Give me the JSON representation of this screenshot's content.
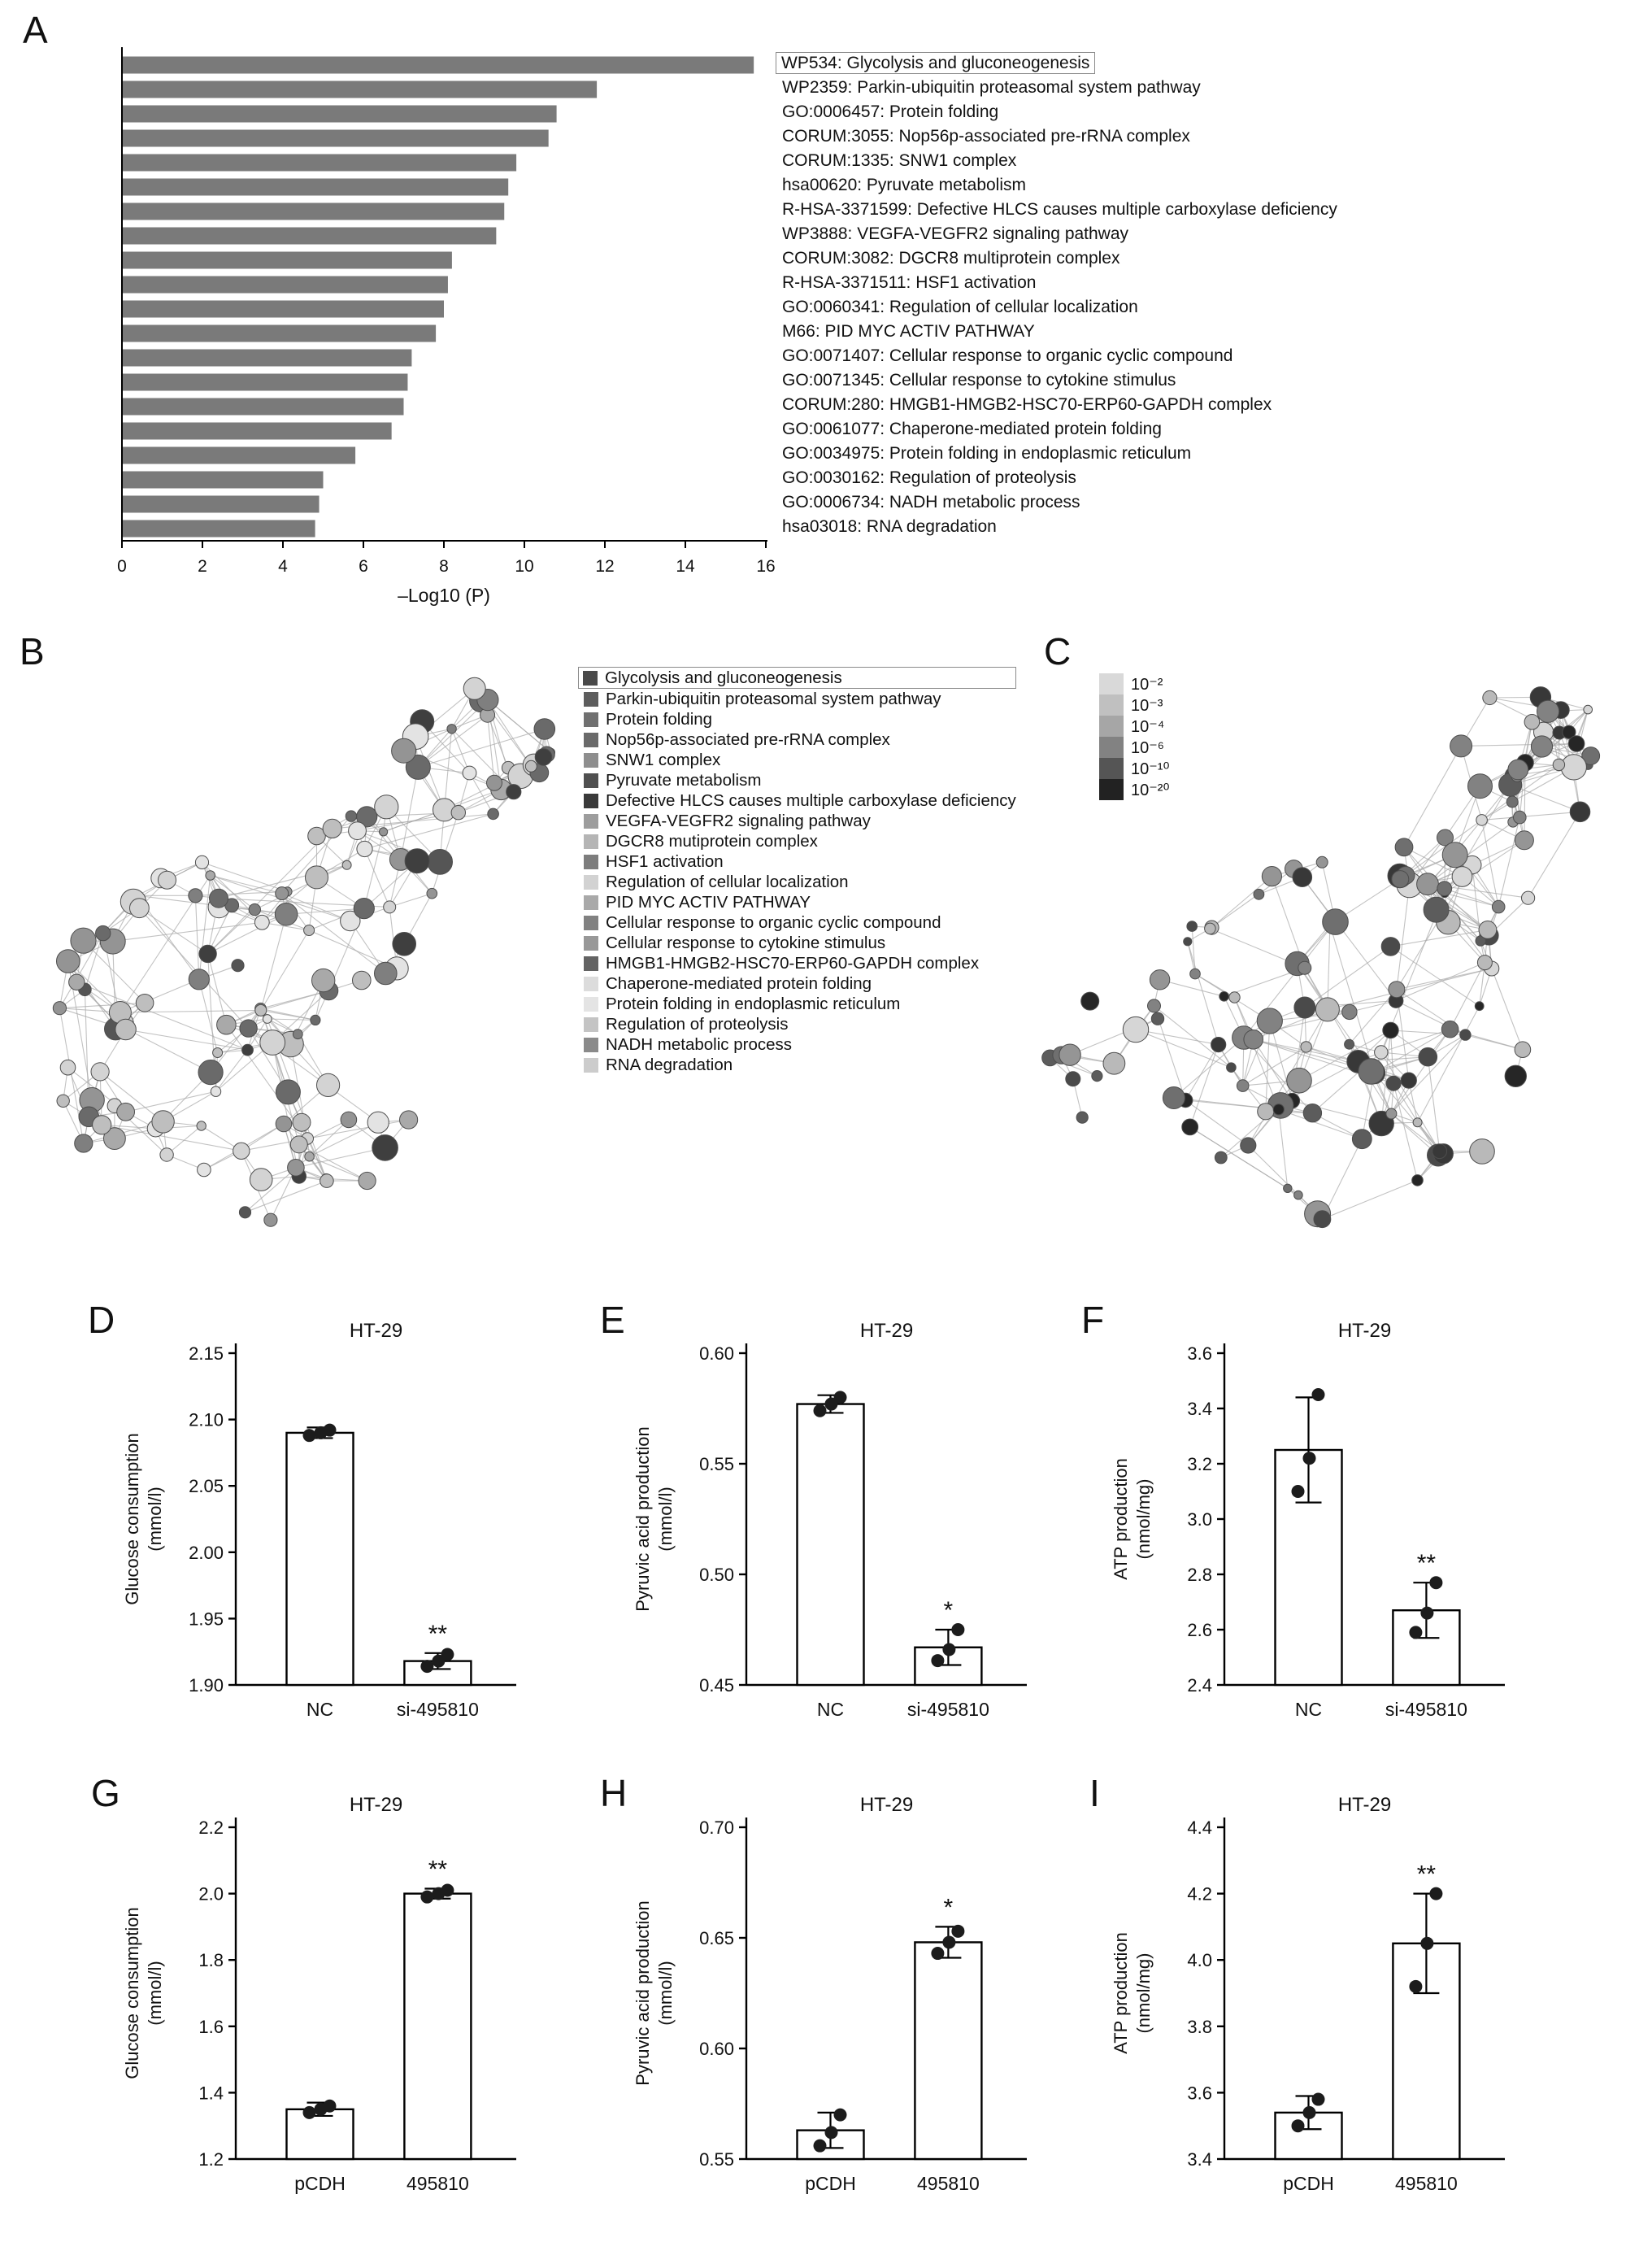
{
  "figure": {
    "background": "#ffffff"
  },
  "panel_labels": [
    "A",
    "B",
    "C",
    "D",
    "E",
    "F",
    "G",
    "H",
    "I"
  ],
  "chart_data": [
    {
      "id": "A",
      "type": "bar",
      "orientation": "horizontal",
      "xlabel": "–Log10 (P)",
      "xlim": [
        0,
        16
      ],
      "xticks": [
        0,
        2,
        4,
        6,
        8,
        10,
        12,
        14,
        16
      ],
      "bar_color": "#7a7a7a",
      "boxed_category_index": 0,
      "categories": [
        "WP534: Glycolysis and gluconeogenesis",
        "WP2359: Parkin-ubiquitin proteasomal system pathway",
        "GO:0006457: Protein folding",
        "CORUM:3055: Nop56p-associated pre-rRNA complex",
        "CORUM:1335: SNW1 complex",
        "hsa00620: Pyruvate metabolism",
        "R-HSA-3371599: Defective HLCS causes multiple carboxylase deficiency",
        "WP3888: VEGFA-VEGFR2 signaling pathway",
        "CORUM:3082: DGCR8 multiprotein complex",
        "R-HSA-3371511: HSF1 activation",
        "GO:0060341: Regulation of cellular localization",
        "M66: PID MYC ACTIV PATHWAY",
        "GO:0071407: Cellular response to organic cyclic compound",
        "GO:0071345: Cellular response to cytokine stimulus",
        "CORUM:280: HMGB1-HMGB2-HSC70-ERP60-GAPDH complex",
        "GO:0061077: Chaperone-mediated protein folding",
        "GO:0034975: Protein folding in endoplasmic reticulum",
        "GO:0030162: Regulation of proteolysis",
        "GO:0006734: NADH metabolic process",
        "hsa03018: RNA degradation"
      ],
      "values": [
        15.7,
        11.8,
        10.8,
        10.6,
        9.8,
        9.6,
        9.5,
        9.3,
        8.2,
        8.1,
        8.0,
        7.8,
        7.2,
        7.1,
        7.0,
        6.7,
        5.8,
        5.0,
        4.9,
        4.8
      ]
    },
    {
      "id": "D",
      "type": "bar_scatter",
      "title": "HT-29",
      "ylabel": [
        "Glucose consumption",
        "(mmol/l)"
      ],
      "ylim": [
        1.9,
        2.15
      ],
      "yticks": [
        1.9,
        1.95,
        2.0,
        2.05,
        2.1,
        2.15
      ],
      "ydecimals": 2,
      "categories": [
        "NC",
        "si-495810"
      ],
      "values": [
        2.09,
        1.918
      ],
      "errors": [
        0.004,
        0.006
      ],
      "points": [
        [
          2.088,
          2.09,
          2.092
        ],
        [
          1.914,
          1.918,
          1.923
        ]
      ],
      "sig": [
        "",
        "**"
      ]
    },
    {
      "id": "E",
      "type": "bar_scatter",
      "title": "HT-29",
      "ylabel": [
        "Pyruvic acid production",
        "(mmol/l)"
      ],
      "ylim": [
        0.45,
        0.6
      ],
      "yticks": [
        0.45,
        0.5,
        0.55,
        0.6
      ],
      "ydecimals": 2,
      "categories": [
        "NC",
        "si-495810"
      ],
      "values": [
        0.577,
        0.467
      ],
      "errors": [
        0.004,
        0.008
      ],
      "points": [
        [
          0.574,
          0.577,
          0.58
        ],
        [
          0.461,
          0.466,
          0.475
        ]
      ],
      "sig": [
        "",
        "*"
      ]
    },
    {
      "id": "F",
      "type": "bar_scatter",
      "title": "HT-29",
      "ylabel": [
        "ATP production",
        "(nmol/mg)"
      ],
      "ylim": [
        2.4,
        3.6
      ],
      "yticks": [
        2.4,
        2.6,
        2.8,
        3.0,
        3.2,
        3.4,
        3.6
      ],
      "ydecimals": 1,
      "categories": [
        "NC",
        "si-495810"
      ],
      "values": [
        3.25,
        2.67
      ],
      "errors": [
        0.19,
        0.1
      ],
      "points": [
        [
          3.1,
          3.22,
          3.45
        ],
        [
          2.59,
          2.66,
          2.77
        ]
      ],
      "sig": [
        "",
        "**"
      ]
    },
    {
      "id": "G",
      "type": "bar_scatter",
      "title": "HT-29",
      "ylabel": [
        "Glucose consumption",
        "(mmol/l)"
      ],
      "ylim": [
        1.2,
        2.2
      ],
      "yticks": [
        1.2,
        1.4,
        1.6,
        1.8,
        2.0,
        2.2
      ],
      "ydecimals": 1,
      "categories": [
        "pCDH",
        "495810"
      ],
      "values": [
        1.35,
        2.0
      ],
      "errors": [
        0.02,
        0.015
      ],
      "points": [
        [
          1.34,
          1.35,
          1.36
        ],
        [
          1.99,
          2.0,
          2.01
        ]
      ],
      "sig": [
        "",
        "**"
      ]
    },
    {
      "id": "H",
      "type": "bar_scatter",
      "title": "HT-29",
      "ylabel": [
        "Pyruvic acid production",
        "(mmol/l)"
      ],
      "ylim": [
        0.55,
        0.7
      ],
      "yticks": [
        0.55,
        0.6,
        0.65,
        0.7
      ],
      "ydecimals": 2,
      "categories": [
        "pCDH",
        "495810"
      ],
      "values": [
        0.563,
        0.648
      ],
      "errors": [
        0.008,
        0.007
      ],
      "points": [
        [
          0.556,
          0.562,
          0.57
        ],
        [
          0.643,
          0.648,
          0.653
        ]
      ],
      "sig": [
        "",
        "*"
      ]
    },
    {
      "id": "I",
      "type": "bar_scatter",
      "title": "HT-29",
      "ylabel": [
        "ATP production",
        "(nmol/mg)"
      ],
      "ylim": [
        3.4,
        4.4
      ],
      "yticks": [
        3.4,
        3.6,
        3.8,
        4.0,
        4.2,
        4.4
      ],
      "ydecimals": 1,
      "categories": [
        "pCDH",
        "495810"
      ],
      "values": [
        3.54,
        4.05
      ],
      "errors": [
        0.05,
        0.15
      ],
      "points": [
        [
          3.5,
          3.54,
          3.58
        ],
        [
          3.92,
          4.05,
          4.2
        ]
      ],
      "sig": [
        "",
        "**"
      ]
    }
  ],
  "panelB": {
    "legend": [
      {
        "name": "Glycolysis and gluconeogenesis",
        "color": "#4a4a4a",
        "boxed": true
      },
      {
        "name": "Parkin-ubiquitin proteasomal system pathway",
        "color": "#5d5d5d",
        "boxed": false
      },
      {
        "name": "Protein folding",
        "color": "#707070",
        "boxed": false
      },
      {
        "name": "Nop56p-associated pre-rRNA complex",
        "color": "#6a6a6a",
        "boxed": false
      },
      {
        "name": "SNW1 complex",
        "color": "#8e8e8e",
        "boxed": false
      },
      {
        "name": "Pyruvate metabolism",
        "color": "#505050",
        "boxed": false
      },
      {
        "name": "Defective HLCS causes multiple carboxylase deficiency",
        "color": "#3a3a3a",
        "boxed": false
      },
      {
        "name": "VEGFA-VEGFR2 signaling pathway",
        "color": "#9d9d9d",
        "boxed": false
      },
      {
        "name": "DGCR8 mutiprotein complex",
        "color": "#b5b5b5",
        "boxed": false
      },
      {
        "name": "HSF1 activation",
        "color": "#7d7d7d",
        "boxed": false
      },
      {
        "name": "Regulation of cellular localization",
        "color": "#d2d2d2",
        "boxed": false
      },
      {
        "name": "PID MYC ACTIV PATHWAY",
        "color": "#a9a9a9",
        "boxed": false
      },
      {
        "name": "Cellular response to organic cyclic compound",
        "color": "#818181",
        "boxed": false
      },
      {
        "name": "Cellular response to cytokine stimulus",
        "color": "#989898",
        "boxed": false
      },
      {
        "name": "HMGB1-HMGB2-HSC70-ERP60-GAPDH complex",
        "color": "#636363",
        "boxed": false
      },
      {
        "name": "Chaperone-mediated protein folding",
        "color": "#dcdcdc",
        "boxed": false
      },
      {
        "name": "Protein folding in endoplasmic reticulum",
        "color": "#e4e4e4",
        "boxed": false
      },
      {
        "name": "Regulation of proteolysis",
        "color": "#c4c4c4",
        "boxed": false
      },
      {
        "name": "NADH metabolic process",
        "color": "#8a8a8a",
        "boxed": false
      },
      {
        "name": "RNA degradation",
        "color": "#cccccc",
        "boxed": false
      }
    ],
    "network_palette": [
      "#3f3f3f",
      "#555555",
      "#6a6a6a",
      "#7f7f7f",
      "#949494",
      "#a9a9a9",
      "#bebebe",
      "#d3d3d3",
      "#e3e3e3"
    ]
  },
  "panelC": {
    "pvalue_legend": [
      {
        "label": "10⁻²",
        "color": "#d9d9d9"
      },
      {
        "label": "10⁻³",
        "color": "#c0c0c0"
      },
      {
        "label": "10⁻⁴",
        "color": "#a6a6a6"
      },
      {
        "label": "10⁻⁶",
        "color": "#828282"
      },
      {
        "label": "10⁻¹⁰",
        "color": "#555555"
      },
      {
        "label": "10⁻²⁰",
        "color": "#222222"
      }
    ],
    "network_palette": [
      "#262626",
      "#383838",
      "#4a4a4a",
      "#5c5c5c",
      "#6f6f6f",
      "#828282",
      "#959595",
      "#b9b9b9",
      "#d6d6d6"
    ]
  }
}
